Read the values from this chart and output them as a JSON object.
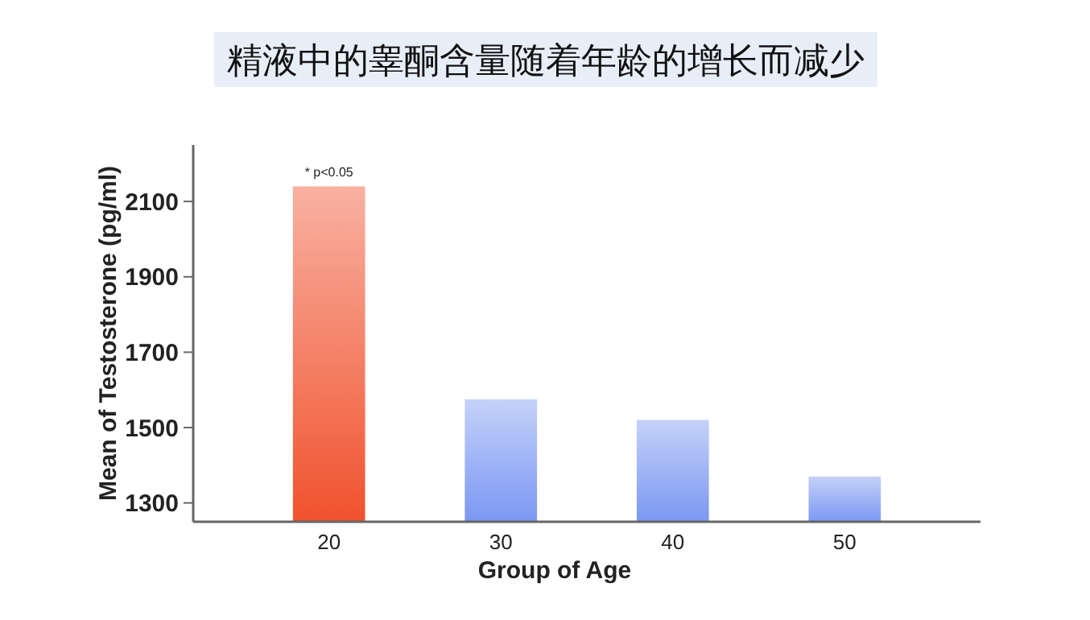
{
  "chart_data": {
    "type": "bar",
    "title": "精液中的睾酮含量随着年龄的增长而减少",
    "xlabel": "Group of Age",
    "ylabel": "Mean of Testosterone (pg/ml)",
    "categories": [
      "20",
      "30",
      "40",
      "50"
    ],
    "values": [
      2140,
      1575,
      1520,
      1370
    ],
    "colors": [
      "#f0522e",
      "#7b98f2",
      "#7b98f2",
      "#7b98f2"
    ],
    "ylim": [
      1250,
      2250
    ],
    "yticks": [
      1300,
      1500,
      1700,
      1900,
      2100
    ],
    "annotations": [
      {
        "text": "* p<0.05",
        "x": "20",
        "y": 2140
      }
    ]
  }
}
